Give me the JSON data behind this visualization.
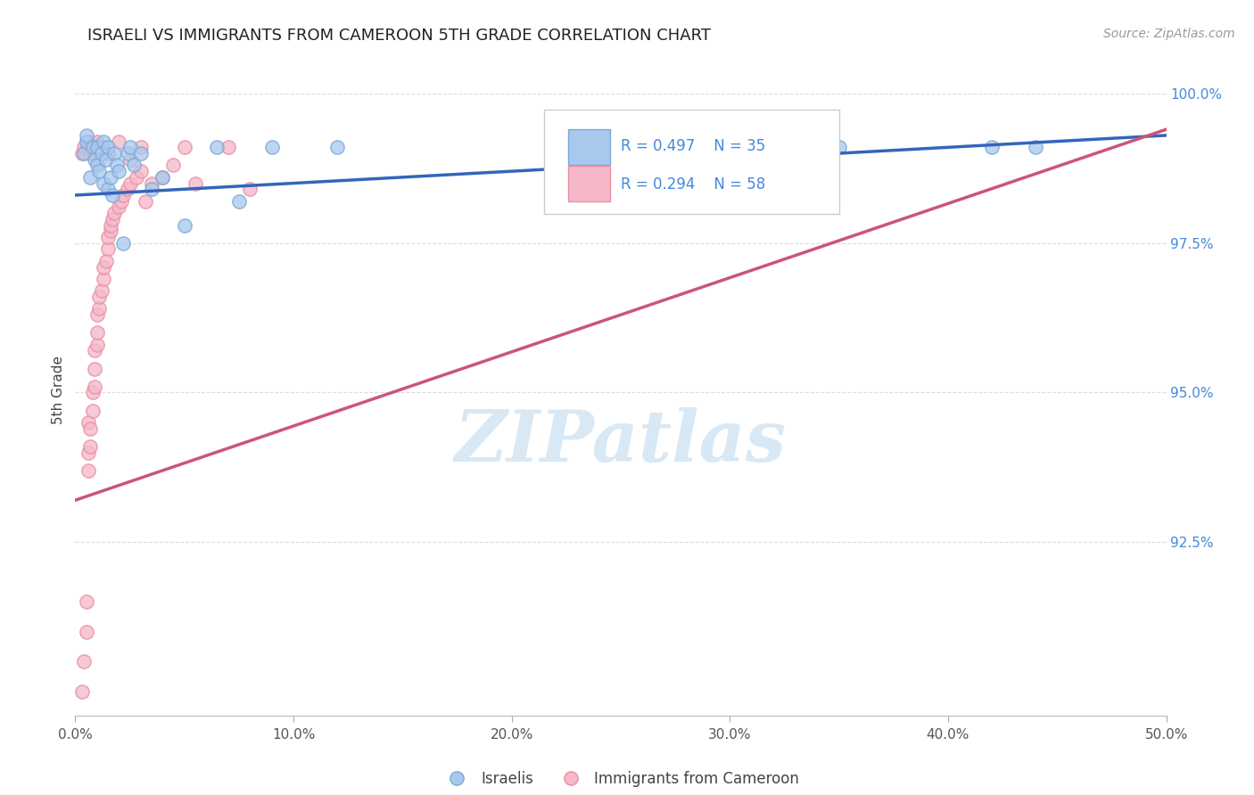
{
  "title": "ISRAELI VS IMMIGRANTS FROM CAMEROON 5TH GRADE CORRELATION CHART",
  "source": "Source: ZipAtlas.com",
  "ylabel": "5th Grade",
  "xlim": [
    0.0,
    0.5
  ],
  "ylim": [
    0.896,
    1.005
  ],
  "yticks": [
    0.925,
    0.95,
    0.975,
    1.0
  ],
  "ytick_labels": [
    "92.5%",
    "95.0%",
    "97.5%",
    "100.0%"
  ],
  "xticks": [
    0.0,
    0.1,
    0.2,
    0.3,
    0.4,
    0.5
  ],
  "xtick_labels": [
    "0.0%",
    "10.0%",
    "20.0%",
    "30.0%",
    "40.0%",
    "50.0%"
  ],
  "legend_r_blue": "R = 0.497",
  "legend_n_blue": "N = 35",
  "legend_r_pink": "R = 0.294",
  "legend_n_pink": "N = 58",
  "blue_color": "#a8c8ee",
  "blue_edge_color": "#7aaad8",
  "pink_color": "#f5b8c8",
  "pink_edge_color": "#e890a8",
  "blue_line_color": "#3366bb",
  "pink_line_color": "#cc5577",
  "watermark_color": "#d8e8f5",
  "grid_color": "#dddddd",
  "title_color": "#222222",
  "source_color": "#999999",
  "axis_label_color": "#555555",
  "yaxis_tick_color": "#4488dd",
  "legend_text_color": "#4488dd",
  "legend_border_color": "#cccccc",
  "israelis_x": [
    0.004,
    0.005,
    0.007,
    0.008,
    0.009,
    0.01,
    0.01,
    0.011,
    0.012,
    0.013,
    0.013,
    0.014,
    0.015,
    0.015,
    0.016,
    0.017,
    0.018,
    0.019,
    0.02,
    0.022,
    0.024,
    0.025,
    0.027,
    0.03,
    0.035,
    0.04,
    0.05,
    0.065,
    0.075,
    0.09,
    0.12,
    0.35,
    0.42,
    0.44,
    0.005
  ],
  "israelis_y": [
    0.99,
    0.992,
    0.986,
    0.991,
    0.989,
    0.988,
    0.991,
    0.987,
    0.99,
    0.992,
    0.985,
    0.989,
    0.984,
    0.991,
    0.986,
    0.983,
    0.99,
    0.988,
    0.987,
    0.975,
    0.99,
    0.991,
    0.988,
    0.99,
    0.984,
    0.986,
    0.978,
    0.991,
    0.982,
    0.991,
    0.991,
    0.991,
    0.991,
    0.991,
    0.993
  ],
  "cameroon_x": [
    0.003,
    0.004,
    0.005,
    0.005,
    0.006,
    0.006,
    0.006,
    0.007,
    0.007,
    0.008,
    0.008,
    0.009,
    0.009,
    0.009,
    0.01,
    0.01,
    0.01,
    0.011,
    0.011,
    0.012,
    0.013,
    0.013,
    0.014,
    0.015,
    0.015,
    0.016,
    0.016,
    0.017,
    0.018,
    0.02,
    0.021,
    0.022,
    0.024,
    0.025,
    0.028,
    0.03,
    0.032,
    0.035,
    0.04,
    0.045,
    0.05,
    0.055,
    0.07,
    0.08,
    0.003,
    0.004,
    0.005,
    0.006,
    0.007,
    0.007,
    0.008,
    0.009,
    0.01,
    0.012,
    0.015,
    0.02,
    0.025,
    0.03
  ],
  "cameroon_y": [
    0.9,
    0.905,
    0.91,
    0.915,
    0.937,
    0.94,
    0.945,
    0.941,
    0.944,
    0.947,
    0.95,
    0.951,
    0.954,
    0.957,
    0.958,
    0.96,
    0.963,
    0.964,
    0.966,
    0.967,
    0.969,
    0.971,
    0.972,
    0.974,
    0.976,
    0.977,
    0.978,
    0.979,
    0.98,
    0.981,
    0.982,
    0.983,
    0.984,
    0.985,
    0.986,
    0.987,
    0.982,
    0.985,
    0.986,
    0.988,
    0.991,
    0.985,
    0.991,
    0.984,
    0.99,
    0.991,
    0.992,
    0.991,
    0.99,
    0.992,
    0.991,
    0.99,
    0.992,
    0.991,
    0.99,
    0.992,
    0.989,
    0.991
  ],
  "blue_line_x0": 0.0,
  "blue_line_y0": 0.983,
  "blue_line_x1": 0.5,
  "blue_line_y1": 0.993,
  "pink_line_x0": 0.0,
  "pink_line_y0": 0.932,
  "pink_line_x1": 0.5,
  "pink_line_y1": 0.994
}
